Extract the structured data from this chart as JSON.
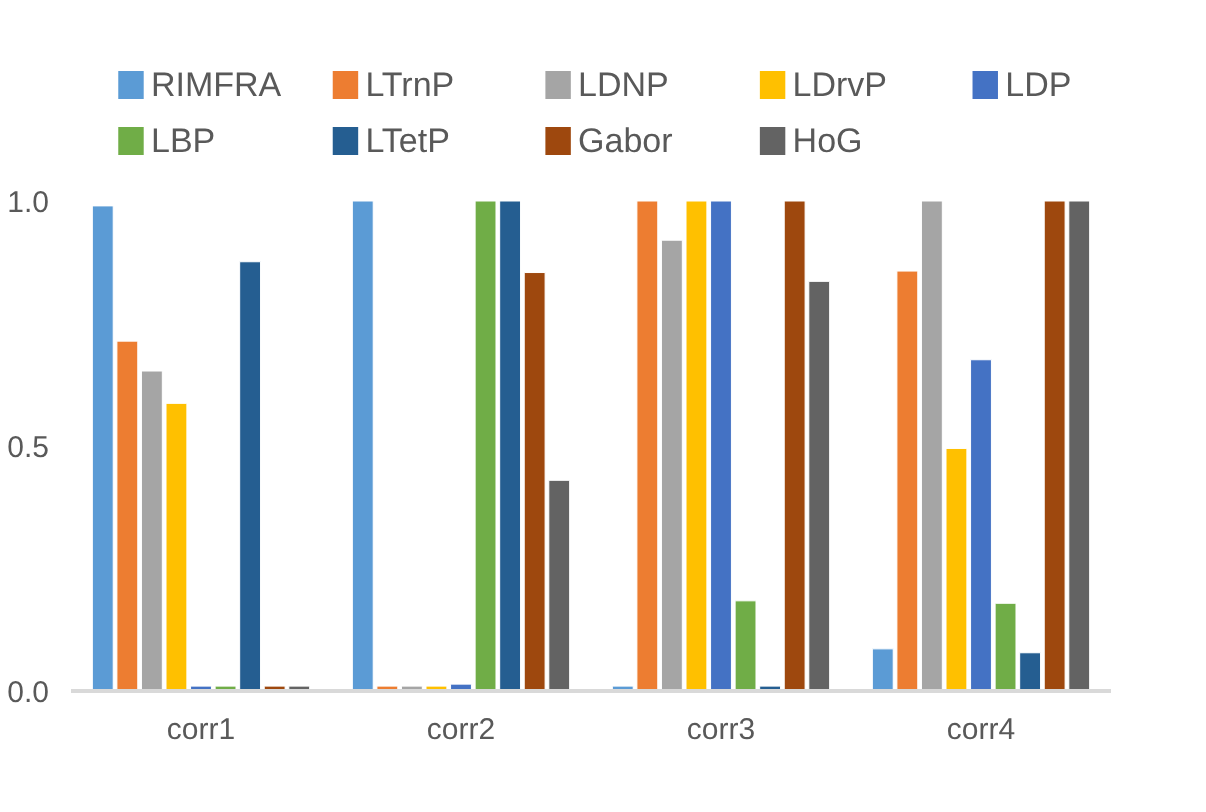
{
  "chart_data": {
    "type": "bar",
    "categories": [
      "corr1",
      "corr2",
      "corr3",
      "corr4"
    ],
    "ylim": [
      0,
      1.0
    ],
    "yticks": [
      {
        "value": 0,
        "label": "0.0"
      },
      {
        "value": 0.5,
        "label": "0.5"
      },
      {
        "value": 1.0,
        "label": "1.0"
      }
    ],
    "grid": false,
    "legend": "top",
    "series": [
      {
        "name": "RIMFRA",
        "color": "#5b9bd5",
        "values": [
          0.99,
          1.0,
          0.01,
          0.086
        ]
      },
      {
        "name": "LTrnP",
        "color": "#ed7d31",
        "values": [
          0.714,
          0.01,
          1.0,
          0.857
        ]
      },
      {
        "name": "LDNP",
        "color": "#a5a5a5",
        "values": [
          0.653,
          0.01,
          0.92,
          1.0
        ]
      },
      {
        "name": "LDrvP",
        "color": "#ffc000",
        "values": [
          0.587,
          0.01,
          1.0,
          0.495
        ]
      },
      {
        "name": "LDP",
        "color": "#4472c4",
        "values": [
          0.01,
          0.014,
          1.0,
          0.676
        ]
      },
      {
        "name": "LBP",
        "color": "#70ad47",
        "values": [
          0.01,
          1.0,
          0.184,
          0.179
        ]
      },
      {
        "name": "LTetP",
        "color": "#255e91",
        "values": [
          0.876,
          1.0,
          0.01,
          0.078
        ]
      },
      {
        "name": "Gabor",
        "color": "#9e480e",
        "values": [
          0.01,
          0.854,
          1.0,
          1.0
        ]
      },
      {
        "name": "HoG",
        "color": "#636363",
        "values": [
          0.01,
          0.43,
          0.836,
          1.0
        ]
      }
    ]
  }
}
